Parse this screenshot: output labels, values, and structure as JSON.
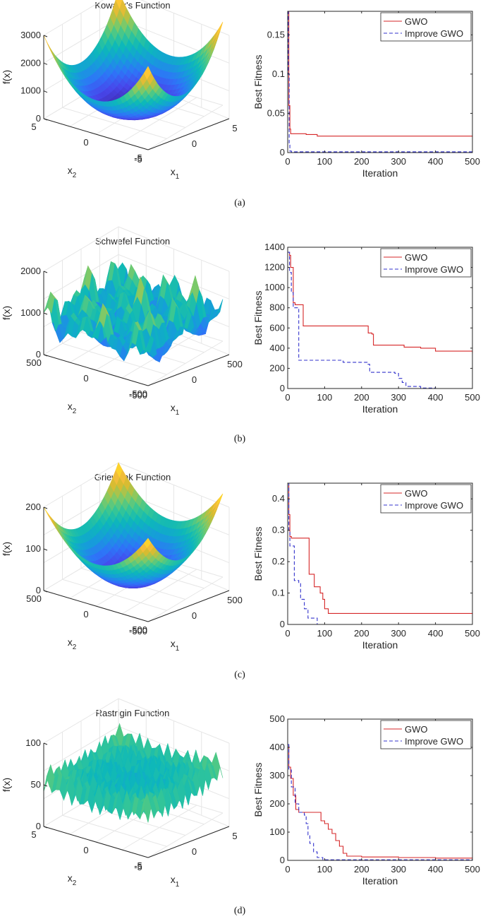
{
  "panels": [
    {
      "caption": "(a)",
      "surface": {
        "title": "Kowalik's Function",
        "zlabel": "f(x)",
        "x1label": "x",
        "x1sub": "1",
        "x2label": "x",
        "x2sub": "2",
        "zticks": [
          "0",
          "1000",
          "2000",
          "3000"
        ],
        "x2ticks": [
          "5",
          "0",
          "-5"
        ],
        "x1ticks": [
          "-5",
          "0",
          "5"
        ]
      },
      "chart_data": {
        "type": "line",
        "xlabel": "Iteration",
        "ylabel": "Best Fitness",
        "xlim": [
          0,
          500
        ],
        "ylim": [
          0,
          0.18
        ],
        "xticks": [
          0,
          100,
          200,
          300,
          400,
          500
        ],
        "yticks": [
          0,
          0.05,
          0.1,
          0.15
        ],
        "ytick_labels": [
          "0",
          "0.05",
          "0.1",
          "0.15"
        ],
        "legend_position": "top-right",
        "series": [
          {
            "name": "GWO",
            "color": "#d62728",
            "dash": "solid",
            "points": [
              [
                0,
                0.18
              ],
              [
                3,
                0.06
              ],
              [
                6,
                0.03
              ],
              [
                8,
                0.024
              ],
              [
                50,
                0.023
              ],
              [
                80,
                0.021
              ],
              [
                300,
                0.021
              ],
              [
                500,
                0.02
              ]
            ]
          },
          {
            "name": "Improve GWO",
            "color": "#3333cc",
            "dash": "dashed",
            "points": [
              [
                0,
                0.18
              ],
              [
                2,
                0.1
              ],
              [
                4,
                0.01
              ],
              [
                6,
                0.002
              ],
              [
                10,
                0.001
              ],
              [
                500,
                0.001
              ]
            ]
          }
        ]
      }
    },
    {
      "caption": "(b)",
      "surface": {
        "title": "Schwefel Function",
        "zlabel": "f(x)",
        "x1label": "x",
        "x1sub": "1",
        "x2label": "x",
        "x2sub": "2",
        "zticks": [
          "0",
          "1000",
          "2000"
        ],
        "x2ticks": [
          "500",
          "0",
          "-500"
        ],
        "x1ticks": [
          "-500",
          "0",
          "500"
        ]
      },
      "chart_data": {
        "type": "line",
        "xlabel": "Iteration",
        "ylabel": "Best Fitness",
        "xlim": [
          0,
          500
        ],
        "ylim": [
          0,
          1400
        ],
        "xticks": [
          0,
          100,
          200,
          300,
          400,
          500
        ],
        "yticks": [
          0,
          200,
          400,
          600,
          800,
          1000,
          1200,
          1400
        ],
        "ytick_labels": [
          "0",
          "200",
          "400",
          "600",
          "800",
          "1000",
          "1200",
          "1400"
        ],
        "legend_position": "top-right",
        "series": [
          {
            "name": "GWO",
            "color": "#d62728",
            "dash": "solid",
            "points": [
              [
                0,
                1350
              ],
              [
                5,
                1320
              ],
              [
                8,
                1200
              ],
              [
                12,
                1200
              ],
              [
                15,
                850
              ],
              [
                20,
                830
              ],
              [
                38,
                830
              ],
              [
                42,
                620
              ],
              [
                215,
                620
              ],
              [
                218,
                550
              ],
              [
                228,
                540
              ],
              [
                232,
                430
              ],
              [
                310,
                430
              ],
              [
                315,
                410
              ],
              [
                360,
                400
              ],
              [
                400,
                370
              ],
              [
                450,
                370
              ],
              [
                500,
                350
              ]
            ]
          },
          {
            "name": "Improve GWO",
            "color": "#3333cc",
            "dash": "dashed",
            "points": [
              [
                0,
                1350
              ],
              [
                5,
                1150
              ],
              [
                10,
                950
              ],
              [
                15,
                800
              ],
              [
                25,
                800
              ],
              [
                30,
                280
              ],
              [
                150,
                260
              ],
              [
                215,
                240
              ],
              [
                222,
                160
              ],
              [
                290,
                150
              ],
              [
                300,
                100
              ],
              [
                310,
                60
              ],
              [
                320,
                20
              ],
              [
                360,
                5
              ],
              [
                400,
                0
              ],
              [
                500,
                0
              ]
            ]
          }
        ]
      }
    },
    {
      "caption": "(c)",
      "surface": {
        "title": "Griewank Function",
        "zlabel": "f(x)",
        "x1label": "x",
        "x1sub": "1",
        "x2label": "x",
        "x2sub": "2",
        "zticks": [
          "0",
          "100",
          "200"
        ],
        "x2ticks": [
          "500",
          "0",
          "-500"
        ],
        "x1ticks": [
          "-500",
          "0",
          "500"
        ]
      },
      "chart_data": {
        "type": "line",
        "xlabel": "Iteration",
        "ylabel": "Best Fitness",
        "xlim": [
          0,
          500
        ],
        "ylim": [
          0,
          0.45
        ],
        "xticks": [
          0,
          100,
          200,
          300,
          400,
          500
        ],
        "yticks": [
          0,
          0.1,
          0.2,
          0.3,
          0.4
        ],
        "ytick_labels": [
          "0",
          "0.1",
          "0.2",
          "0.3",
          "0.4"
        ],
        "legend_position": "top-right",
        "series": [
          {
            "name": "GWO",
            "color": "#d62728",
            "dash": "solid",
            "points": [
              [
                0,
                0.45
              ],
              [
                3,
                0.35
              ],
              [
                6,
                0.28
              ],
              [
                10,
                0.275
              ],
              [
                55,
                0.275
              ],
              [
                58,
                0.16
              ],
              [
                70,
                0.16
              ],
              [
                72,
                0.12
              ],
              [
                85,
                0.12
              ],
              [
                88,
                0.1
              ],
              [
                95,
                0.08
              ],
              [
                100,
                0.05
              ],
              [
                110,
                0.035
              ],
              [
                380,
                0.035
              ],
              [
                500,
                0.032
              ]
            ]
          },
          {
            "name": "Improve GWO",
            "color": "#3333cc",
            "dash": "dashed",
            "points": [
              [
                0,
                0.45
              ],
              [
                3,
                0.3
              ],
              [
                6,
                0.25
              ],
              [
                15,
                0.25
              ],
              [
                18,
                0.14
              ],
              [
                30,
                0.13
              ],
              [
                35,
                0.08
              ],
              [
                45,
                0.05
              ],
              [
                55,
                0.02
              ],
              [
                80,
                0.0
              ],
              [
                500,
                0.0
              ]
            ]
          }
        ]
      }
    },
    {
      "caption": "(d)",
      "surface": {
        "title": "Rastrigin Function",
        "zlabel": "f(x)",
        "x1label": "x",
        "x1sub": "1",
        "x2label": "x",
        "x2sub": "2",
        "zticks": [
          "0",
          "50",
          "100"
        ],
        "x2ticks": [
          "5",
          "0",
          "-5"
        ],
        "x1ticks": [
          "-5",
          "0",
          "5"
        ]
      },
      "chart_data": {
        "type": "line",
        "xlabel": "Iteration",
        "ylabel": "Best Fitness",
        "xlim": [
          0,
          500
        ],
        "ylim": [
          0,
          500
        ],
        "xticks": [
          0,
          100,
          200,
          300,
          400,
          500
        ],
        "yticks": [
          0,
          100,
          200,
          300,
          400,
          500
        ],
        "ytick_labels": [
          "0",
          "100",
          "200",
          "300",
          "400",
          "500"
        ],
        "legend_position": "top-right",
        "series": [
          {
            "name": "GWO",
            "color": "#d62728",
            "dash": "solid",
            "points": [
              [
                0,
                410
              ],
              [
                3,
                330
              ],
              [
                8,
                290
              ],
              [
                15,
                230
              ],
              [
                22,
                180
              ],
              [
                30,
                170
              ],
              [
                85,
                170
              ],
              [
                90,
                140
              ],
              [
                100,
                130
              ],
              [
                110,
                110
              ],
              [
                120,
                95
              ],
              [
                130,
                70
              ],
              [
                140,
                50
              ],
              [
                150,
                25
              ],
              [
                160,
                15
              ],
              [
                200,
                12
              ],
              [
                300,
                10
              ],
              [
                400,
                8
              ],
              [
                500,
                7
              ]
            ]
          },
          {
            "name": "Improve GWO",
            "color": "#3333cc",
            "dash": "dashed",
            "points": [
              [
                0,
                410
              ],
              [
                3,
                320
              ],
              [
                10,
                260
              ],
              [
                20,
                200
              ],
              [
                30,
                170
              ],
              [
                45,
                160
              ],
              [
                50,
                130
              ],
              [
                55,
                90
              ],
              [
                60,
                60
              ],
              [
                70,
                30
              ],
              [
                80,
                10
              ],
              [
                95,
                2
              ],
              [
                500,
                0
              ]
            ]
          }
        ]
      }
    }
  ]
}
